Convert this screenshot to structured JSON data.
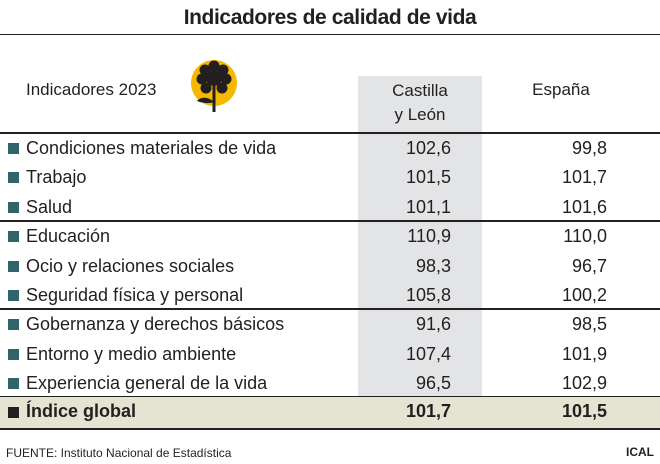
{
  "title": "Indicadores de calidad de vida",
  "header": {
    "label": "Indicadores 2023",
    "col1_line1": "Castilla",
    "col1_line2": "y León",
    "col2": "España"
  },
  "logo": {
    "icon": "flower-logo-icon",
    "bg_color": "#f5b800",
    "fg_color": "#231f20"
  },
  "colors": {
    "row_marker": "#31636b",
    "shaded_column": "#e3e4e5",
    "global_row": "#e4e4d3"
  },
  "chart_data": {
    "type": "table",
    "title": "Indicadores de calidad de vida",
    "columns": [
      "Indicadores 2023",
      "Castilla y León",
      "España"
    ],
    "rows": [
      {
        "label": "Condiciones materiales de vida",
        "cyl": "102,6",
        "esp": "99,8"
      },
      {
        "label": "Trabajo",
        "cyl": "101,5",
        "esp": "101,7"
      },
      {
        "label": "Salud",
        "cyl": "101,1",
        "esp": "101,6"
      },
      {
        "label": "Educación",
        "cyl": "110,9",
        "esp": "110,0"
      },
      {
        "label": "Ocio y relaciones sociales",
        "cyl": "98,3",
        "esp": "96,7"
      },
      {
        "label": "Seguridad física y personal",
        "cyl": "105,8",
        "esp": "100,2"
      },
      {
        "label": "Gobernanza y derechos básicos",
        "cyl": "91,6",
        "esp": "98,5"
      },
      {
        "label": "Entorno y medio ambiente",
        "cyl": "107,4",
        "esp": "101,9"
      },
      {
        "label": "Experiencia general de la vida",
        "cyl": "96,5",
        "esp": "102,9"
      }
    ],
    "total": {
      "label": "Índice global",
      "cyl": "101,7",
      "esp": "101,5"
    }
  },
  "footer": {
    "source": "FUENTE: Instituto Nacional de Estadística",
    "brand": "ICAL"
  }
}
